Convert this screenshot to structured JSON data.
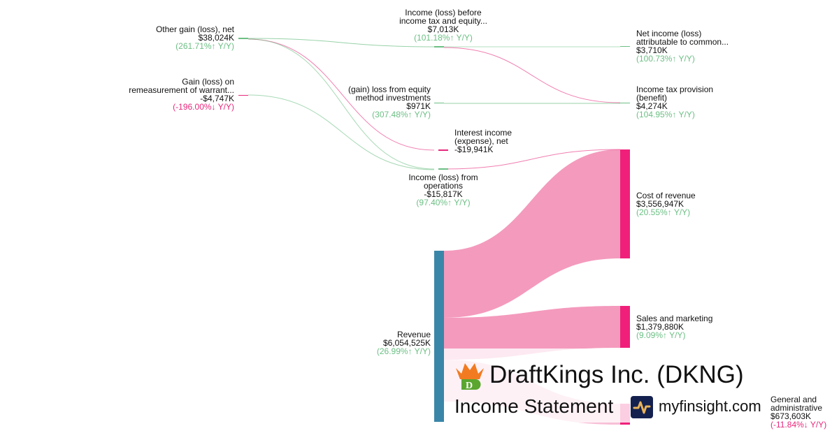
{
  "company": {
    "name": "DraftKings Inc. (DKNG)",
    "statement": "Income Statement",
    "site": "myfinsight.com"
  },
  "colors": {
    "revenue": "#3a86a8",
    "cost": "#f0207a",
    "flow_cost": "#f49abd",
    "gain": "#6cbf84"
  },
  "nodes": {
    "other_gain": {
      "name": "Other gain (loss), net",
      "value": "$38,024K",
      "change": "(261.71%↑ Y/Y)"
    },
    "warrant": {
      "name1": "Gain (loss) on",
      "name2": "remeasurement of warrant...",
      "value": "-$4,747K",
      "change": "(-196.00%↓ Y/Y)"
    },
    "pretax": {
      "name1": "Income (loss) before",
      "name2": "income tax and equity...",
      "value": "$7,013K",
      "change": "(101.18%↑ Y/Y)"
    },
    "equity": {
      "name1": "(gain) loss from equity",
      "name2": "method investments",
      "value": "$971K",
      "change": "(307.48%↑ Y/Y)"
    },
    "interest": {
      "name1": "Interest income",
      "name2": "(expense), net",
      "value": "-$19,941K"
    },
    "operations": {
      "name1": "Income (loss) from",
      "name2": "operations",
      "value": "-$15,817K",
      "change": "(97.40%↑ Y/Y)"
    },
    "revenue": {
      "name": "Revenue",
      "value": "$6,054,525K",
      "change": "(26.99%↑ Y/Y)"
    },
    "net_income": {
      "name1": "Net income (loss)",
      "name2": "attributable to common...",
      "value": "$3,710K",
      "change": "(100.73%↑ Y/Y)"
    },
    "tax": {
      "name1": "Income tax provision",
      "name2": "(benefit)",
      "value": "$4,274K",
      "change": "(104.95%↑ Y/Y)"
    },
    "cost_revenue": {
      "name": "Cost of revenue",
      "value": "$3,556,947K",
      "change": "(20.55%↑ Y/Y)"
    },
    "sales_marketing": {
      "name": "Sales and marketing",
      "value": "$1,379,880K",
      "change": "(9.09%↑ Y/Y)"
    },
    "ga": {
      "name1": "General and",
      "name2": "administrative",
      "value": "$673,603K",
      "change": "(-11.84%↓ Y/Y)"
    }
  }
}
